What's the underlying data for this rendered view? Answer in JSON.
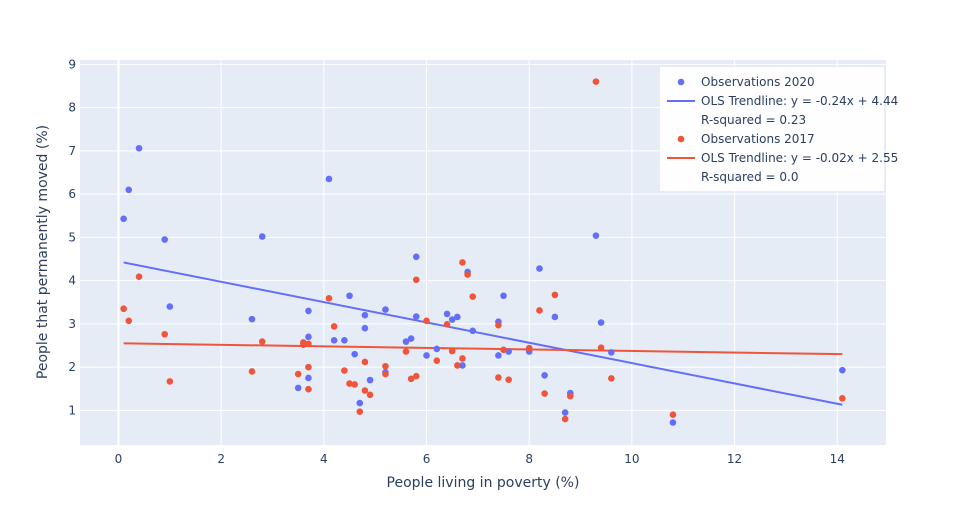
{
  "chart_data": {
    "type": "scatter",
    "xlabel": "People living in poverty (%)",
    "ylabel": "People that permanently moved (%)",
    "xlim": [
      -0.75,
      14.95
    ],
    "ylim": [
      0.2,
      9.1
    ],
    "xticks": [
      0,
      2,
      4,
      6,
      8,
      10,
      12,
      14
    ],
    "yticks": [
      1,
      2,
      3,
      4,
      5,
      6,
      7,
      8,
      9
    ],
    "grid": true,
    "legend_position": "top-right",
    "series": [
      {
        "name": "Observations 2020",
        "kind": "markers",
        "color": "#636efa",
        "points": [
          [
            0.1,
            5.43
          ],
          [
            0.2,
            6.1
          ],
          [
            0.4,
            7.06
          ],
          [
            0.9,
            4.95
          ],
          [
            1.0,
            3.4
          ],
          [
            2.6,
            3.11
          ],
          [
            2.8,
            5.02
          ],
          [
            3.5,
            1.52
          ],
          [
            3.7,
            1.75
          ],
          [
            3.7,
            2.7
          ],
          [
            3.7,
            3.3
          ],
          [
            4.1,
            6.35
          ],
          [
            4.2,
            2.62
          ],
          [
            4.4,
            2.62
          ],
          [
            4.5,
            3.65
          ],
          [
            4.6,
            2.3
          ],
          [
            4.7,
            1.17
          ],
          [
            4.8,
            2.9
          ],
          [
            4.8,
            3.2
          ],
          [
            4.9,
            1.7
          ],
          [
            5.2,
            1.88
          ],
          [
            5.2,
            3.33
          ],
          [
            5.6,
            2.59
          ],
          [
            5.7,
            2.66
          ],
          [
            5.8,
            3.17
          ],
          [
            5.8,
            4.55
          ],
          [
            6.0,
            2.27
          ],
          [
            6.2,
            2.42
          ],
          [
            6.4,
            3.23
          ],
          [
            6.5,
            3.1
          ],
          [
            6.6,
            3.16
          ],
          [
            6.7,
            2.04
          ],
          [
            6.8,
            4.2
          ],
          [
            6.9,
            2.84
          ],
          [
            7.4,
            2.27
          ],
          [
            7.4,
            3.05
          ],
          [
            7.5,
            3.65
          ],
          [
            7.6,
            2.36
          ],
          [
            8.0,
            2.36
          ],
          [
            8.2,
            4.28
          ],
          [
            8.3,
            1.81
          ],
          [
            8.5,
            3.16
          ],
          [
            8.7,
            0.95
          ],
          [
            8.8,
            1.4
          ],
          [
            9.3,
            5.04
          ],
          [
            9.4,
            3.03
          ],
          [
            9.6,
            2.34
          ],
          [
            10.8,
            0.72
          ],
          [
            14.1,
            1.93
          ]
        ]
      },
      {
        "name": "OLS Trendline:  y = -0.24x + 4.44",
        "extra_legend_text": "R-squared = 0.23",
        "kind": "line",
        "color": "#636efa",
        "points": [
          [
            0.1,
            4.42
          ],
          [
            14.1,
            1.13
          ]
        ]
      },
      {
        "name": "Observations 2017",
        "kind": "markers",
        "color": "#ef553b",
        "points": [
          [
            0.1,
            3.35
          ],
          [
            0.2,
            3.07
          ],
          [
            0.4,
            4.09
          ],
          [
            0.9,
            2.76
          ],
          [
            1.0,
            1.67
          ],
          [
            2.6,
            1.9
          ],
          [
            2.8,
            2.59
          ],
          [
            3.5,
            1.84
          ],
          [
            3.6,
            2.52
          ],
          [
            3.6,
            2.57
          ],
          [
            3.7,
            2.54
          ],
          [
            3.7,
            2.0
          ],
          [
            3.7,
            1.49
          ],
          [
            4.1,
            3.59
          ],
          [
            4.2,
            2.94
          ],
          [
            4.4,
            1.92
          ],
          [
            4.5,
            1.62
          ],
          [
            4.6,
            1.6
          ],
          [
            4.7,
            0.97
          ],
          [
            4.8,
            1.46
          ],
          [
            4.8,
            2.12
          ],
          [
            4.9,
            1.36
          ],
          [
            5.2,
            1.84
          ],
          [
            5.2,
            2.02
          ],
          [
            5.6,
            2.36
          ],
          [
            5.7,
            1.73
          ],
          [
            5.8,
            1.79
          ],
          [
            5.8,
            4.02
          ],
          [
            6.0,
            3.07
          ],
          [
            6.2,
            2.15
          ],
          [
            6.4,
            2.99
          ],
          [
            6.5,
            2.37
          ],
          [
            6.6,
            2.04
          ],
          [
            6.7,
            2.2
          ],
          [
            6.7,
            4.42
          ],
          [
            6.8,
            4.14
          ],
          [
            6.9,
            3.63
          ],
          [
            7.4,
            1.76
          ],
          [
            7.4,
            2.97
          ],
          [
            7.5,
            2.4
          ],
          [
            7.6,
            1.71
          ],
          [
            8.0,
            2.44
          ],
          [
            8.2,
            3.31
          ],
          [
            8.3,
            1.39
          ],
          [
            8.5,
            3.67
          ],
          [
            8.7,
            0.8
          ],
          [
            8.8,
            1.33
          ],
          [
            9.3,
            8.6
          ],
          [
            9.4,
            2.45
          ],
          [
            9.6,
            1.74
          ],
          [
            10.8,
            0.9
          ],
          [
            14.1,
            1.28
          ]
        ]
      },
      {
        "name": "OLS Trendline:  y = -0.02x + 2.55",
        "extra_legend_text": "R-squared = 0.0",
        "kind": "line",
        "color": "#ef553b",
        "points": [
          [
            0.1,
            2.55
          ],
          [
            14.1,
            2.3
          ]
        ]
      }
    ]
  }
}
